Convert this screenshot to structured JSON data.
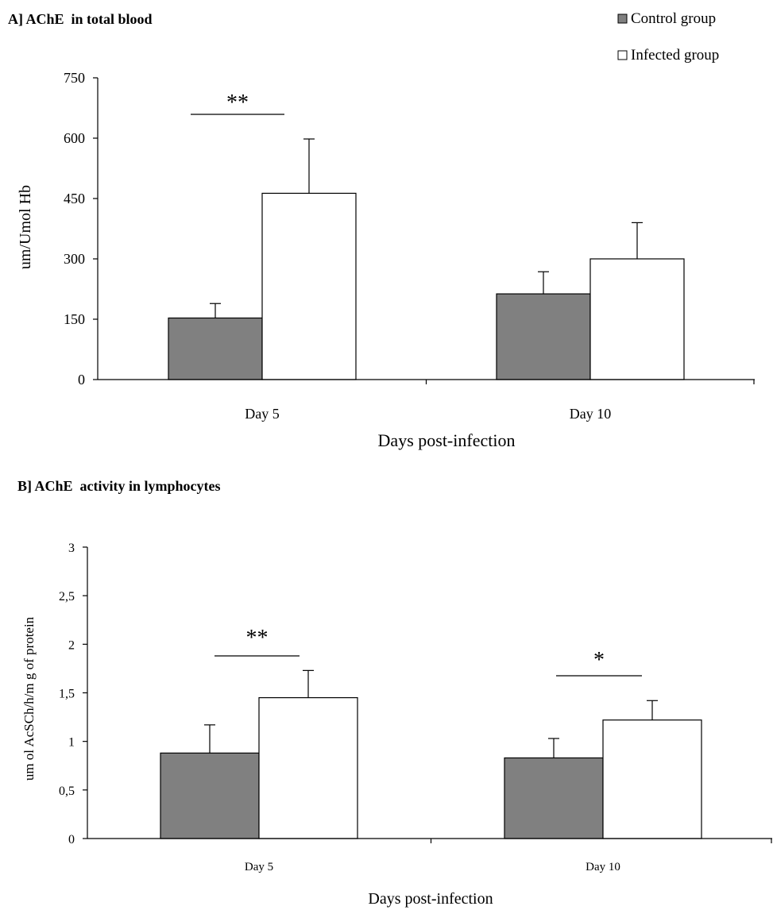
{
  "legend": {
    "position": "top-right",
    "items": [
      {
        "label": "Control group",
        "color": "#808080"
      },
      {
        "label": "Infected group",
        "color": "#ffffff"
      }
    ]
  },
  "chart_data": [
    {
      "type": "bar",
      "title": "A] AChE  in total blood",
      "xlabel": "Days post-infection",
      "ylabel": "um/Umol Hb",
      "categories": [
        "Day 5",
        "Day 10"
      ],
      "yticks": [
        "0",
        "150",
        "300",
        "450",
        "600",
        "750"
      ],
      "ylim": [
        0,
        750
      ],
      "grid": false,
      "series": [
        {
          "name": "Control group",
          "color": "#808080",
          "values": [
            153,
            213
          ],
          "errors": [
            36,
            55
          ]
        },
        {
          "name": "Infected group",
          "color": "#ffffff",
          "values": [
            463,
            300
          ],
          "errors": [
            135,
            90
          ]
        }
      ],
      "significance": [
        {
          "category": "Day 5",
          "label": "**"
        }
      ]
    },
    {
      "type": "bar",
      "title": "B] AChE  activity in lymphocytes",
      "xlabel": "Days post-infection",
      "ylabel": "um ol AcSCh/h/m g of protein",
      "categories": [
        "Day 5",
        "Day 10"
      ],
      "yticks": [
        "0",
        "0,5",
        "1",
        "1,5",
        "2",
        "2,5",
        "3"
      ],
      "ylim": [
        0,
        3
      ],
      "grid": false,
      "series": [
        {
          "name": "Control group",
          "color": "#808080",
          "values": [
            0.88,
            0.83
          ],
          "errors": [
            0.29,
            0.2
          ]
        },
        {
          "name": "Infected group",
          "color": "#ffffff",
          "values": [
            1.45,
            1.22
          ],
          "errors": [
            0.28,
            0.2
          ]
        }
      ],
      "significance": [
        {
          "category": "Day 5",
          "label": "**"
        },
        {
          "category": "Day 10",
          "label": "*"
        }
      ]
    }
  ]
}
